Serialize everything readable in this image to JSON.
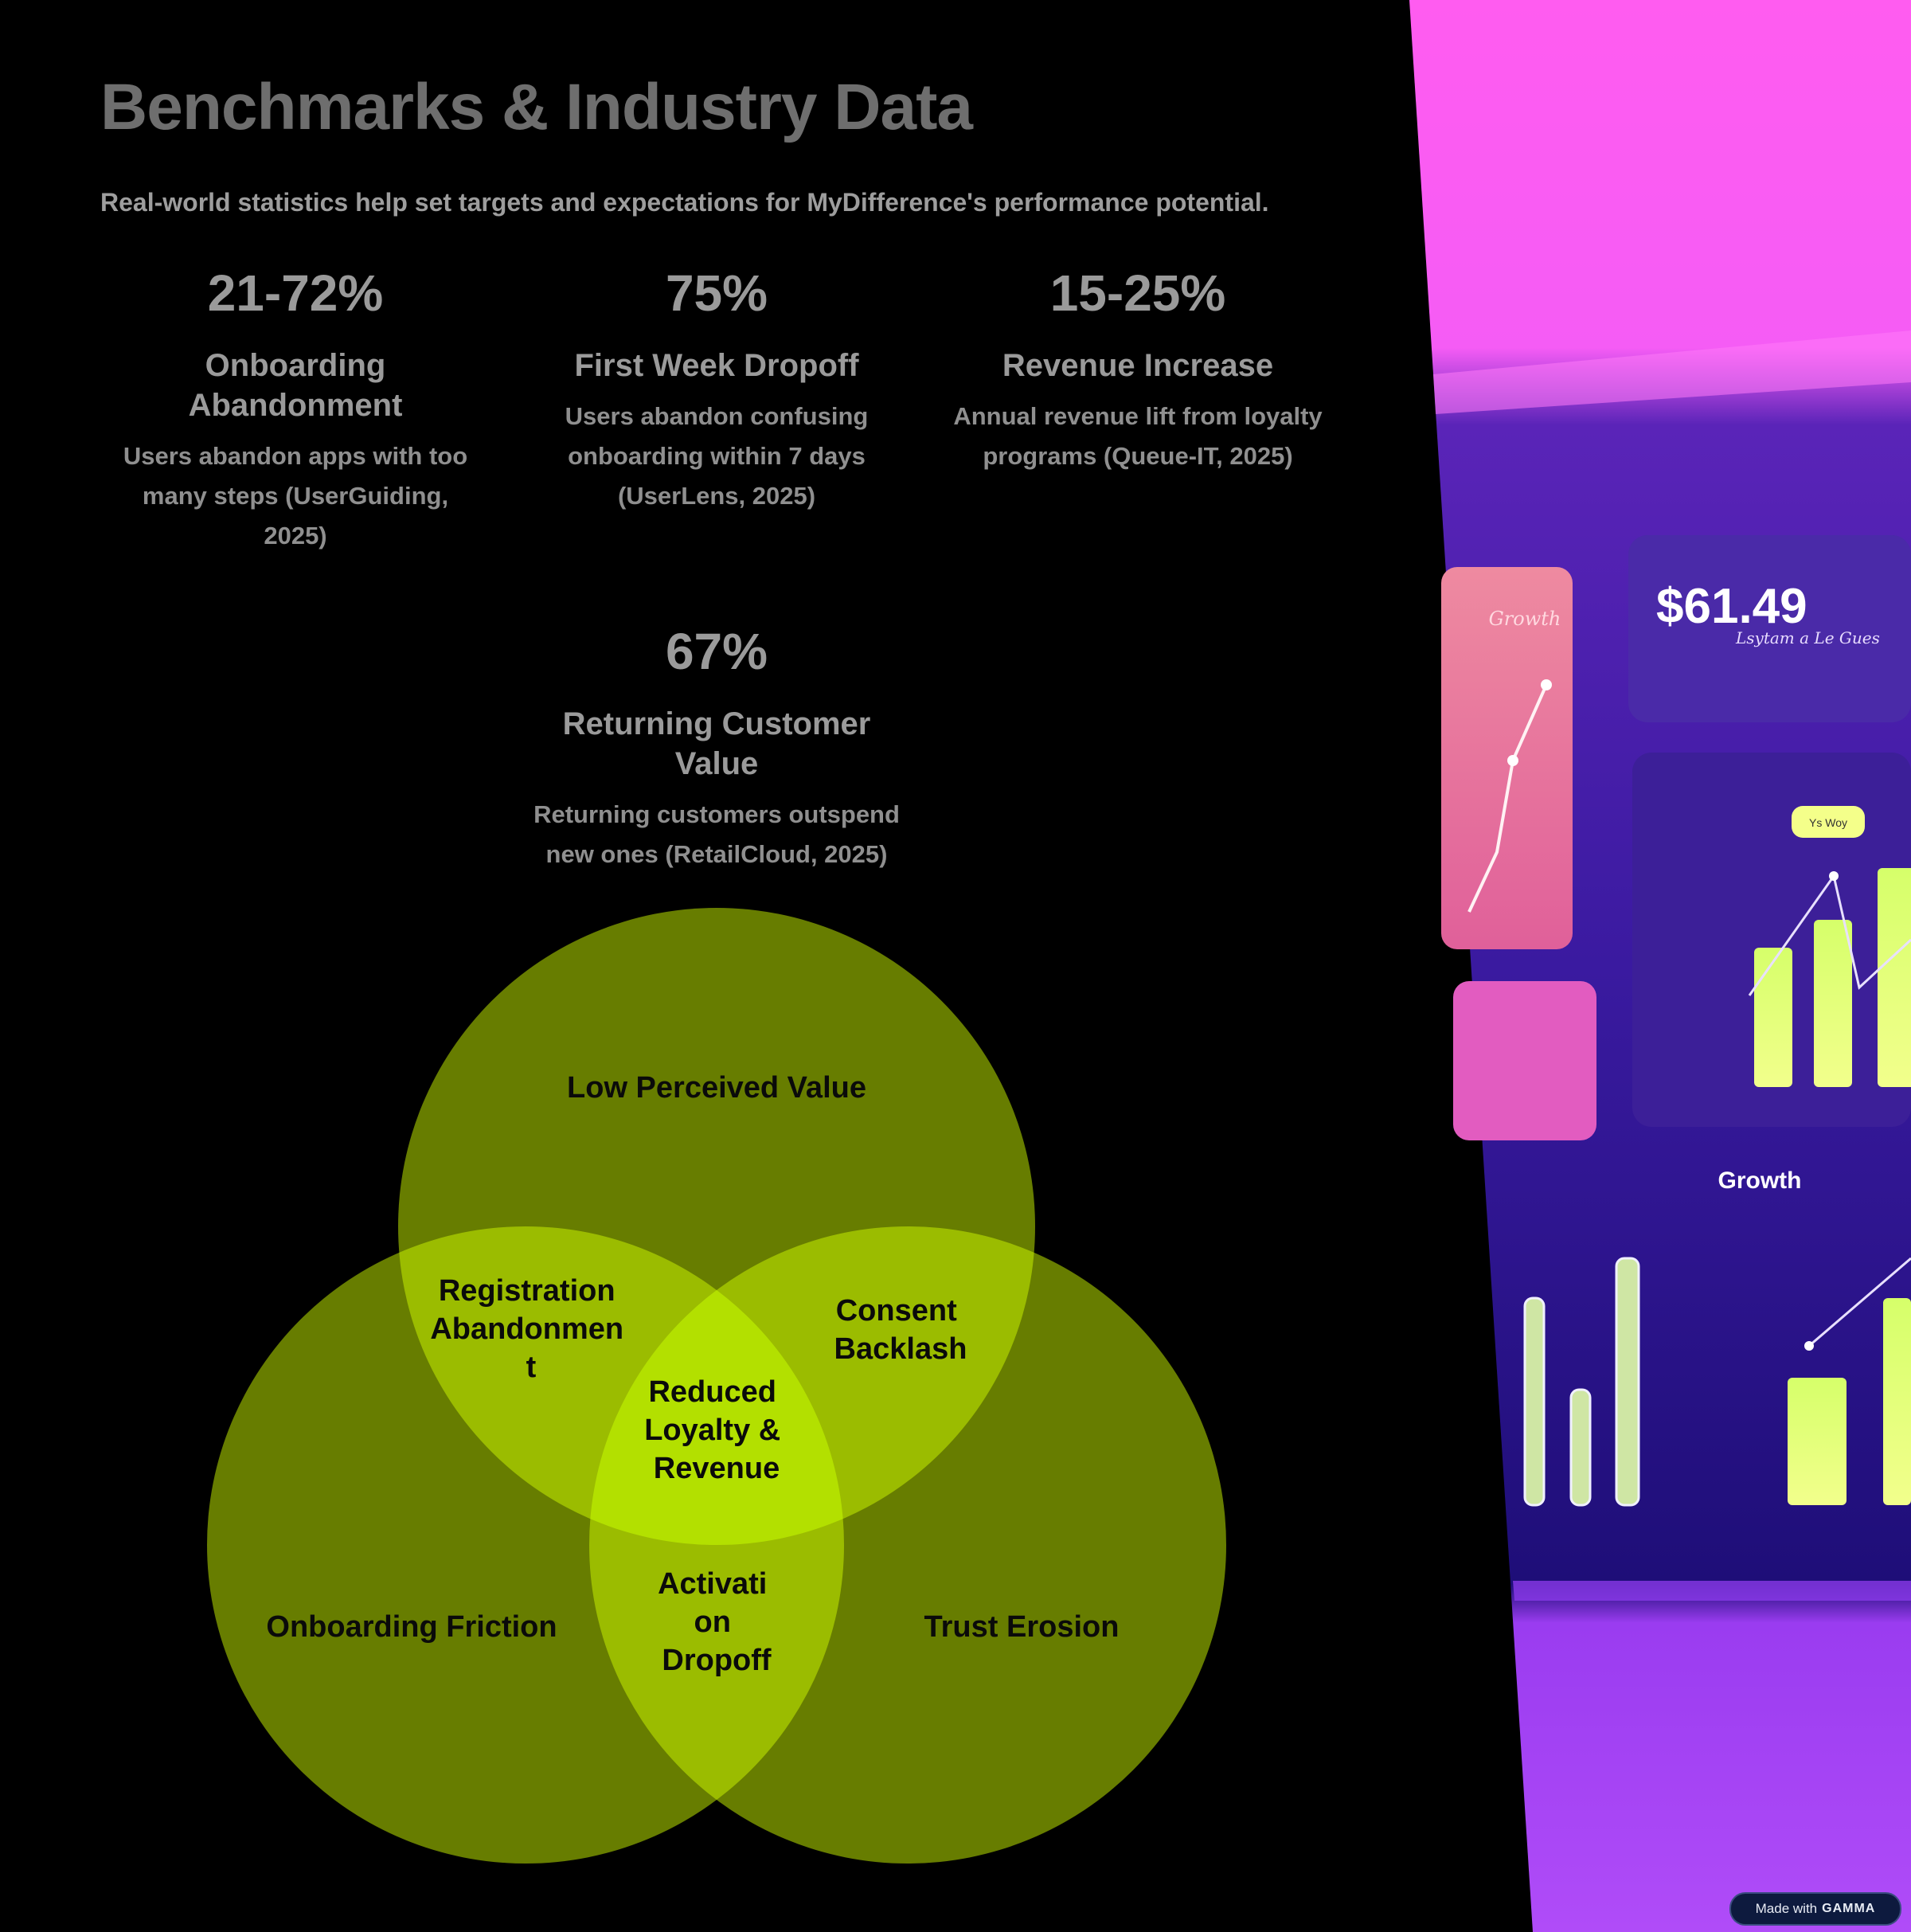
{
  "title": "Benchmarks & Industry Data",
  "subtitle": "Real-world statistics help set targets and expectations for MyDifference's performance potential.",
  "stats": [
    {
      "value": "21-72%",
      "label_lines": [
        "Onboarding",
        "Abandonment"
      ],
      "desc_lines": [
        "Users abandon apps with too",
        "many steps (UserGuiding,",
        "2025)"
      ]
    },
    {
      "value": "75%",
      "label_lines": [
        "First Week Dropoff"
      ],
      "desc_lines": [
        "Users abandon confusing",
        "onboarding within 7 days",
        "(UserLens, 2025)"
      ]
    },
    {
      "value": "15-25%",
      "label_lines": [
        "Revenue Increase"
      ],
      "desc_lines": [
        "Annual revenue lift from loyalty",
        "programs (Queue-IT, 2025)"
      ]
    },
    {
      "value": "67%",
      "label_lines": [
        "Returning Customer",
        "Value"
      ],
      "desc_lines": [
        "Returning customers outspend",
        "new ones (RetailCloud, 2025)"
      ]
    }
  ],
  "venn": {
    "sets": [
      {
        "label_lines": [
          "Low Perceived Value"
        ]
      },
      {
        "label_lines": [
          "Onboarding Friction"
        ]
      },
      {
        "label_lines": [
          "Trust Erosion"
        ]
      }
    ],
    "overlaps": [
      {
        "label_lines": [
          "Registration",
          "Abandonmen",
          "t"
        ]
      },
      {
        "label_lines": [
          "Consent",
          "Backlash"
        ]
      },
      {
        "label_lines": [
          "Activati",
          "on",
          "Dropoff"
        ]
      }
    ],
    "center": {
      "label_lines": [
        "Reduced",
        "Loyalty &",
        "Revenue"
      ]
    },
    "colors": {
      "circle": "#677d00",
      "pair": "#9bbc00",
      "center": "#b3e000",
      "text": "#0a0a0a"
    }
  },
  "dashboard_image": {
    "price": "$61.49",
    "price_caption": "Lsytam a Le Gues",
    "card_title": "Growth",
    "card_title_small": "Growth",
    "pill": "Ys Woy"
  },
  "badge": {
    "prefix": "Made with",
    "brand": "GAMMA"
  }
}
